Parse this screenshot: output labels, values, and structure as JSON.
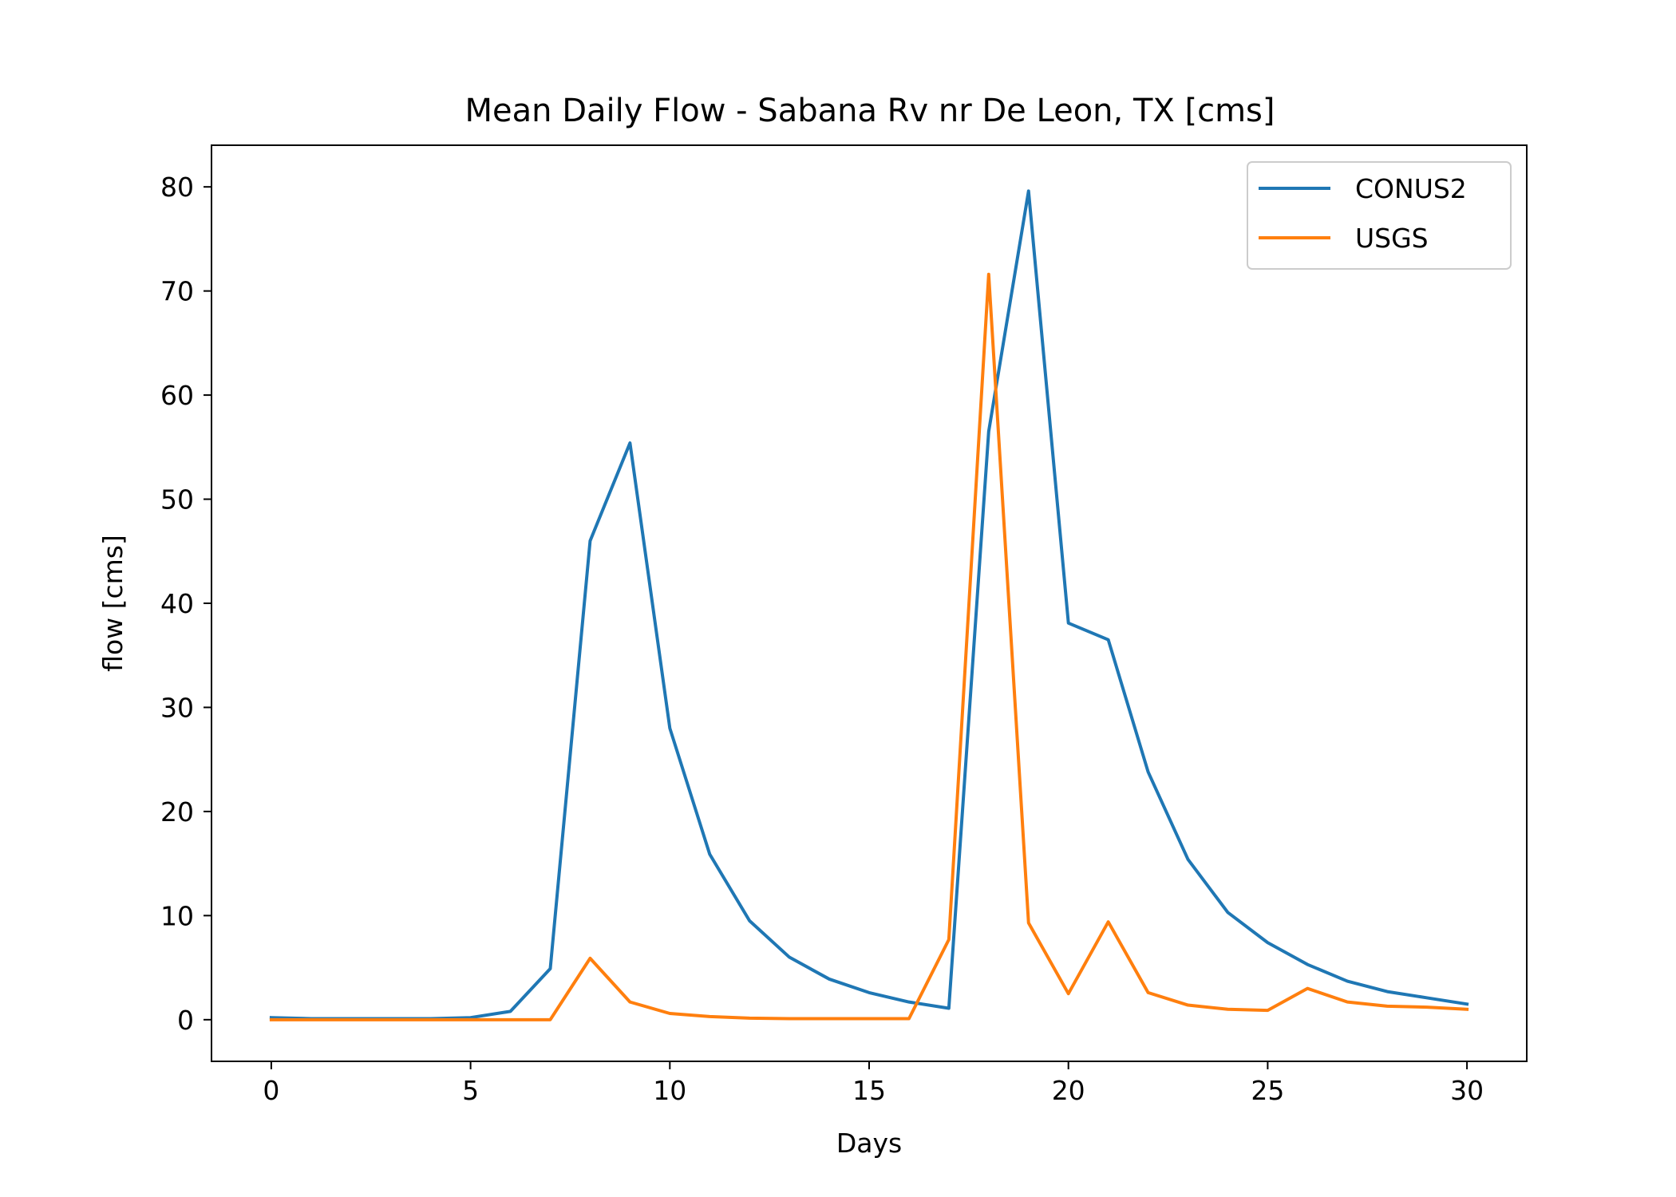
{
  "chart_data": {
    "type": "line",
    "title": "Mean Daily Flow - Sabana Rv nr De Leon, TX [cms]",
    "xlabel": "Days",
    "ylabel": "flow [cms]",
    "xlim": [
      -1.5,
      31.5
    ],
    "ylim": [
      -4,
      84
    ],
    "xticks": [
      0,
      5,
      10,
      15,
      20,
      25,
      30
    ],
    "yticks": [
      0,
      10,
      20,
      30,
      40,
      50,
      60,
      70,
      80
    ],
    "grid": false,
    "legend_position": "top-right",
    "x": [
      0,
      1,
      2,
      3,
      4,
      5,
      6,
      7,
      8,
      9,
      10,
      11,
      12,
      13,
      14,
      15,
      16,
      17,
      18,
      19,
      20,
      21,
      22,
      23,
      24,
      25,
      26,
      27,
      28,
      29,
      30
    ],
    "series": [
      {
        "name": "CONUS2",
        "color": "#1f77b4",
        "values": [
          0.2,
          0.1,
          0.1,
          0.1,
          0.1,
          0.2,
          0.8,
          4.9,
          46.0,
          55.4,
          28.0,
          15.9,
          9.5,
          6.0,
          3.9,
          2.6,
          1.7,
          1.1,
          56.5,
          79.6,
          38.1,
          36.5,
          23.8,
          15.4,
          10.3,
          7.4,
          5.3,
          3.7,
          2.7,
          2.1,
          1.5
        ]
      },
      {
        "name": "USGS",
        "color": "#ff7f0e",
        "values": [
          0.0,
          0.0,
          0.0,
          0.0,
          0.0,
          0.0,
          0.0,
          0.0,
          5.9,
          1.7,
          0.6,
          0.3,
          0.15,
          0.1,
          0.1,
          0.1,
          0.1,
          7.7,
          71.6,
          9.3,
          2.5,
          9.4,
          2.6,
          1.4,
          1.0,
          0.9,
          3.0,
          1.7,
          1.3,
          1.2,
          1.0
        ]
      }
    ]
  }
}
